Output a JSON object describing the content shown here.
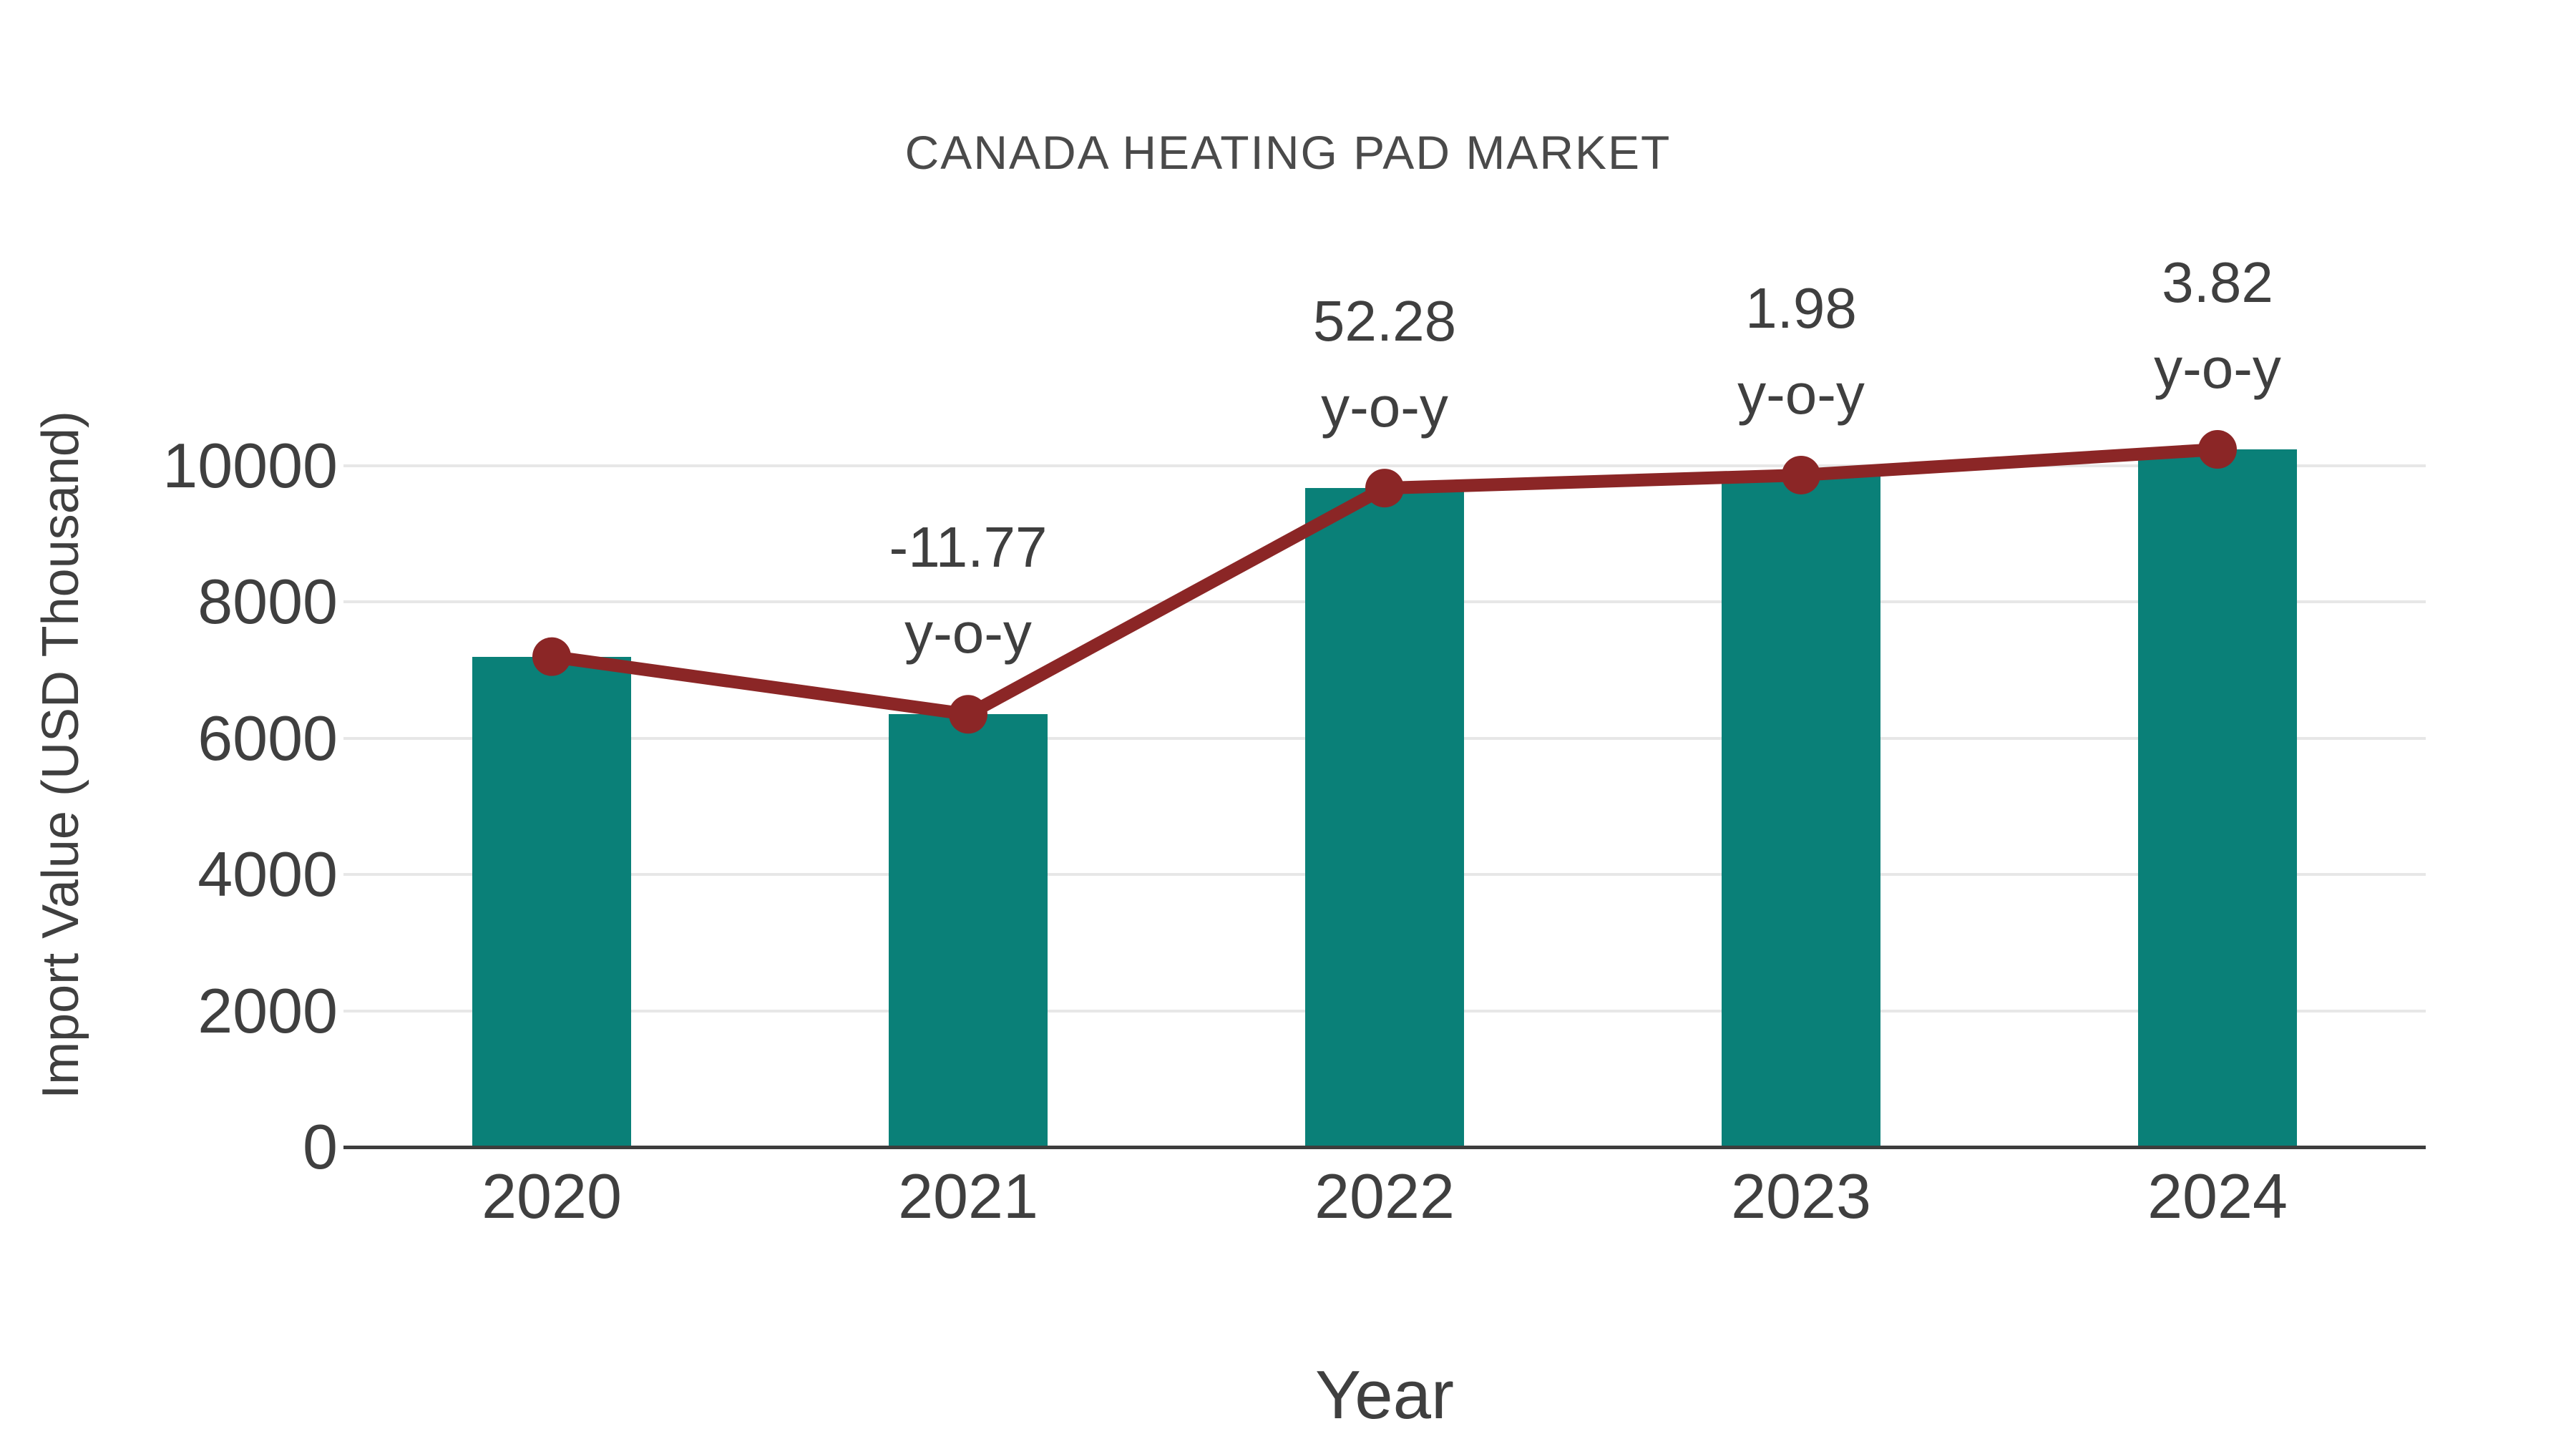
{
  "chart": {
    "title": "CANADA HEATING PAD MARKET",
    "x_axis_title": "Year",
    "y_axis_title": "Import Value (USD Thousand)"
  },
  "chart_data": {
    "type": "bar",
    "overlay": "line",
    "title": "CANADA HEATING PAD MARKET",
    "xlabel": "Year",
    "ylabel": "Import Value (USD Thousand)",
    "categories": [
      "2020",
      "2021",
      "2022",
      "2023",
      "2024"
    ],
    "values": [
      7199,
      6352,
      9673,
      9864,
      10241
    ],
    "yoy_percent": [
      null,
      -11.77,
      52.28,
      1.98,
      3.82
    ],
    "annotations": [
      {
        "category": "2021",
        "lines": [
          "-11.77",
          "y-o-y"
        ]
      },
      {
        "category": "2022",
        "lines": [
          "52.28",
          "y-o-y"
        ]
      },
      {
        "category": "2023",
        "lines": [
          "1.98",
          "y-o-y"
        ]
      },
      {
        "category": "2024",
        "lines": [
          "3.82",
          "y-o-y"
        ]
      }
    ],
    "yticks": [
      0,
      2000,
      4000,
      6000,
      8000,
      10000
    ],
    "ylim": [
      0,
      14100
    ],
    "grid": true,
    "legend": false,
    "colors": {
      "bar": "#0a8078",
      "line": "#8b2626",
      "text": "#3f3f3f",
      "grid": "#e7e7e7",
      "axis": "#3d3d3d"
    }
  }
}
